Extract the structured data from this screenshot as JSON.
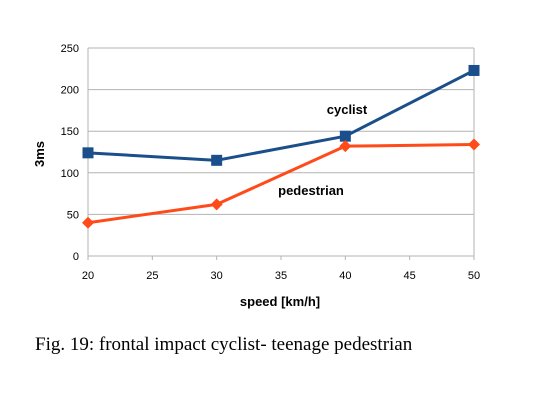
{
  "caption": "Fig. 19: frontal impact cyclist- teenage pedestrian",
  "chart_data": {
    "type": "line",
    "title": "",
    "xlabel": "speed [km/h]",
    "ylabel": "3ms",
    "x": [
      20,
      30,
      40,
      50
    ],
    "xticks": [
      20,
      25,
      30,
      35,
      40,
      45,
      50
    ],
    "yticks": [
      0,
      50,
      100,
      150,
      200,
      250
    ],
    "xlim": [
      20,
      50
    ],
    "ylim": [
      0,
      250
    ],
    "grid": "horizontal",
    "legend": "none",
    "series": [
      {
        "name": "cyclist",
        "values": [
          124,
          115,
          144,
          223
        ],
        "color": "#1a4f8b",
        "marker": "square"
      },
      {
        "name": "pedestrian",
        "values": [
          40,
          62,
          132,
          134
        ],
        "color": "#ff4a1a",
        "marker": "diamond"
      }
    ]
  }
}
